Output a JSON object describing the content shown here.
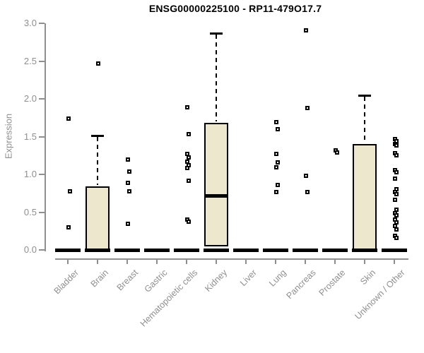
{
  "chart_data": {
    "type": "boxplot",
    "title": "ENSG00000225100 - RP11-479O17.7",
    "xlabel": "",
    "ylabel": "Expression",
    "ylim": [
      0.0,
      3.0
    ],
    "ytick_labels": [
      "0.0",
      "0.5",
      "1.0",
      "1.5",
      "2.0",
      "2.5",
      "3.0"
    ],
    "ytick_values": [
      0.0,
      0.5,
      1.0,
      1.5,
      2.0,
      2.5,
      3.0
    ],
    "grid": false,
    "legend": false,
    "colors": {
      "box_fill": "#ece7cd",
      "box_border": "#000000",
      "axis": "#8f8f8f",
      "title": "#000000",
      "background": "#ffffff"
    },
    "categories": [
      "Bladder",
      "Brain",
      "Breast",
      "Gastric",
      "Hematopoietic cells",
      "Kidney",
      "Liver",
      "Lung",
      "Pancreas",
      "Prostate",
      "Skin",
      "Unknown / Other"
    ],
    "series": [
      {
        "name": "Bladder",
        "box": null,
        "zero_bar": true,
        "points": [
          1.74,
          0.78,
          0.3
        ]
      },
      {
        "name": "Brain",
        "box": {
          "q1": 0.0,
          "median": 0.0,
          "q3": 0.84,
          "whisker_high": 1.51
        },
        "zero_bar": true,
        "points": [
          2.47
        ]
      },
      {
        "name": "Breast",
        "box": null,
        "zero_bar": true,
        "points": [
          1.2,
          1.04,
          0.89,
          0.78,
          0.35
        ]
      },
      {
        "name": "Gastric",
        "box": null,
        "zero_bar": true,
        "points": []
      },
      {
        "name": "Hematopoietic cells",
        "box": null,
        "zero_bar": true,
        "points": [
          1.89,
          1.53,
          1.27,
          1.22,
          1.17,
          1.12,
          1.08,
          0.92,
          0.4,
          0.37
        ]
      },
      {
        "name": "Kidney",
        "box": {
          "q1": 0.05,
          "median": 0.72,
          "q3": 1.68,
          "whisker_high": 2.87
        },
        "zero_bar": true,
        "points": []
      },
      {
        "name": "Liver",
        "box": null,
        "zero_bar": true,
        "points": []
      },
      {
        "name": "Lung",
        "box": null,
        "zero_bar": true,
        "points": [
          1.69,
          1.6,
          1.27,
          1.16,
          1.09,
          0.86,
          0.77
        ]
      },
      {
        "name": "Pancreas",
        "box": null,
        "zero_bar": true,
        "points": [
          2.91,
          1.88,
          0.98,
          0.77
        ]
      },
      {
        "name": "Prostate",
        "box": null,
        "zero_bar": true,
        "points": [
          1.32,
          1.29
        ]
      },
      {
        "name": "Skin",
        "box": {
          "q1": 0.0,
          "median": 0.0,
          "q3": 1.4,
          "whisker_high": 2.05
        },
        "zero_bar": true,
        "points": []
      },
      {
        "name": "Unknown / Other",
        "box": null,
        "zero_bar": true,
        "points": [
          1.47,
          1.44,
          1.4,
          1.38,
          1.28,
          1.25,
          1.06,
          1.03,
          0.94,
          0.8,
          0.77,
          0.74,
          0.66,
          0.53,
          0.49,
          0.46,
          0.4,
          0.36,
          0.32,
          0.27,
          0.19,
          0.16
        ]
      }
    ]
  }
}
